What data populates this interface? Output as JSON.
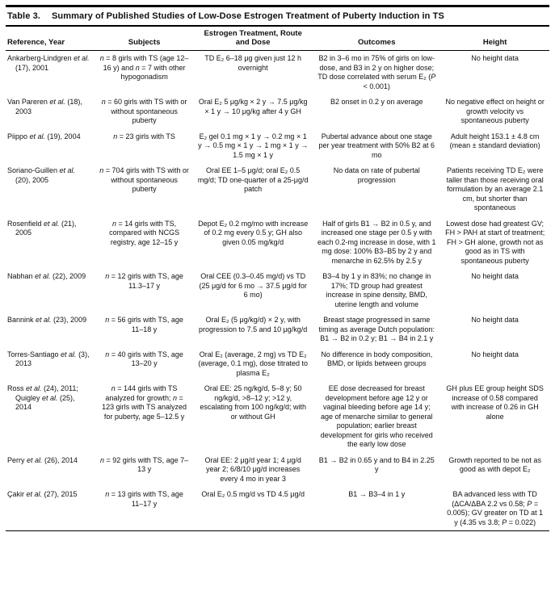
{
  "table": {
    "title_label": "Table 3.",
    "title": "Summary of Published Studies of Low-Dose Estrogen Treatment of Puberty Induction in TS",
    "columns": [
      "Reference, Year",
      "Subjects",
      "Estrogen Treatment, Route and Dose",
      "Outcomes",
      "Height"
    ],
    "rows": [
      {
        "reference": "Ankarberg-Lindgren et al. (17), 2001",
        "subjects": "n = 8 girls with TS (age 12–16 y) and n = 7 with other hypogonadism",
        "treatment": "TD E₂ 6–18 μg given just 12 h overnight",
        "outcomes": "B2 in 3–6 mo in 75% of girls on low-dose, and B3 in 2 y on higher dose; TD dose correlated with serum E₂ (P < 0.001)",
        "height": "No height data"
      },
      {
        "reference": "Van Pareren et al. (18), 2003",
        "subjects": "n = 60 girls with TS with or without spontaneous puberty",
        "treatment": "Oral E₂ 5 μg/kg × 2 y → 7.5 μg/kg × 1 y → 10 μg/kg after 4 y GH",
        "outcomes": "B2 onset in 0.2 y on average",
        "height": "No negative effect on height or growth velocity vs spontaneous puberty"
      },
      {
        "reference": "Piippo et al. (19), 2004",
        "subjects": "n = 23 girls with TS",
        "treatment": "E₂ gel 0.1 mg × 1 y → 0.2 mg × 1 y → 0.5 mg × 1 y → 1 mg × 1 y → 1.5 mg × 1 y",
        "outcomes": "Pubertal advance about one stage per year treatment with 50% B2 at 6 mo",
        "height": "Adult height 153.1 ± 4.8 cm (mean ± standard deviation)"
      },
      {
        "reference": "Soriano-Guillen et al. (20), 2005",
        "subjects": "n = 704 girls with TS with or without spontaneous puberty",
        "treatment": "Oral EE 1–5 μg/d; oral E₂ 0.5 mg/d; TD one-quarter of a 25-μg/d patch",
        "outcomes": "No data on rate of pubertal progression",
        "height": "Patients receiving TD E₂ were taller than those receiving oral formulation by an average 2.1 cm, but shorter than spontaneous"
      },
      {
        "reference": "Rosenfield et al. (21), 2005",
        "subjects": "n = 14 girls with TS, compared with NCGS registry, age 12–15 y",
        "treatment": "Depot E₂ 0.2 mg/mo with increase of 0.2 mg every 0.5 y; GH also given 0.05 mg/kg/d",
        "outcomes": "Half of girls B1 → B2 in 0.5 y, and increased one stage per 0.5 y with each 0.2-mg increase in dose, with 1 mg dose: 100% B3–B5 by 2 y and menarche in 62.5% by 2.5 y",
        "height": "Lowest dose had greatest GV; FH > PAH at start of treatment; FH > GH alone, growth not as good as in TS with spontaneous puberty"
      },
      {
        "reference": "Nabhan et al. (22), 2009",
        "subjects": "n = 12 girls with TS, age 11.3–17 y",
        "treatment": "Oral CEE (0.3–0.45 mg/d) vs TD (25 μg/d for 6 mo → 37.5 μg/d for 6 mo)",
        "outcomes": "B3–4 by 1 y in 83%; no change in 17%; TD group had greatest increase in spine density, BMD, uterine length and volume",
        "height": "No height data"
      },
      {
        "reference": "Bannink et al. (23), 2009",
        "subjects": "n = 56 girls with TS, age 11–18 y",
        "treatment": "Oral E₂ (5 μg/kg/d) × 2 y, with progression to 7.5 and 10 μg/kg/d",
        "outcomes": "Breast stage progressed in same timing as average Dutch population: B1 → B2 in 0.2 y; B1 → B4 in 2.1 y",
        "height": "No height data"
      },
      {
        "reference": "Torres-Santiago et al. (3), 2013",
        "subjects": "n = 40 girls with TS, age 13–20 y",
        "treatment": "Oral E₂ (average, 2 mg) vs TD E₂ (average, 0.1 mg), dose titrated to plasma E₂",
        "outcomes": "No difference in body composition, BMD, or lipids between groups",
        "height": "No height data"
      },
      {
        "reference": "Ross et al. (24), 2011; Quigley et al. (25), 2014",
        "subjects": "n = 144 girls with TS analyzed for growth; n = 123 girls with TS analyzed for puberty, age 5–12.5 y",
        "treatment": "Oral EE: 25 ng/kg/d, 5–8 y; 50 ng/kg/d, >8–12 y; >12 y, escalating from 100 ng/kg/d; with or without GH",
        "outcomes": "EE dose decreased for breast development before age 12 y or vaginal bleeding before age 14 y; age of menarche similar to general population; earlier breast development for girls who received the early low dose",
        "height": "GH plus EE group height SDS increase of 0.58 compared with increase of 0.26 in GH alone"
      },
      {
        "reference": "Perry et al. (26), 2014",
        "subjects": "n = 92 girls with TS, age 7–13 y",
        "treatment": "Oral EE: 2 μg/d year 1; 4 μg/d year 2; 6/8/10 μg/d increases every 4 mo in year 3",
        "outcomes": "B1 → B2 in 0.65 y and to B4 in 2.25 y",
        "height": "Growth reported to be not as good as with depot E₂"
      },
      {
        "reference": "Çakir et al. (27), 2015",
        "subjects": "n = 13 girls with TS, age 11–17 y",
        "treatment": "Oral E₂ 0.5 mg/d vs TD 4.5 μg/d",
        "outcomes": "B1 → B3–4 in 1 y",
        "height": "BA advanced less with TD (ΔCA/ΔBA 2.2 vs 0.58; P = 0.005); GV greater on TD at 1 y (4.35 vs 3.8; P = 0.022)"
      }
    ]
  }
}
